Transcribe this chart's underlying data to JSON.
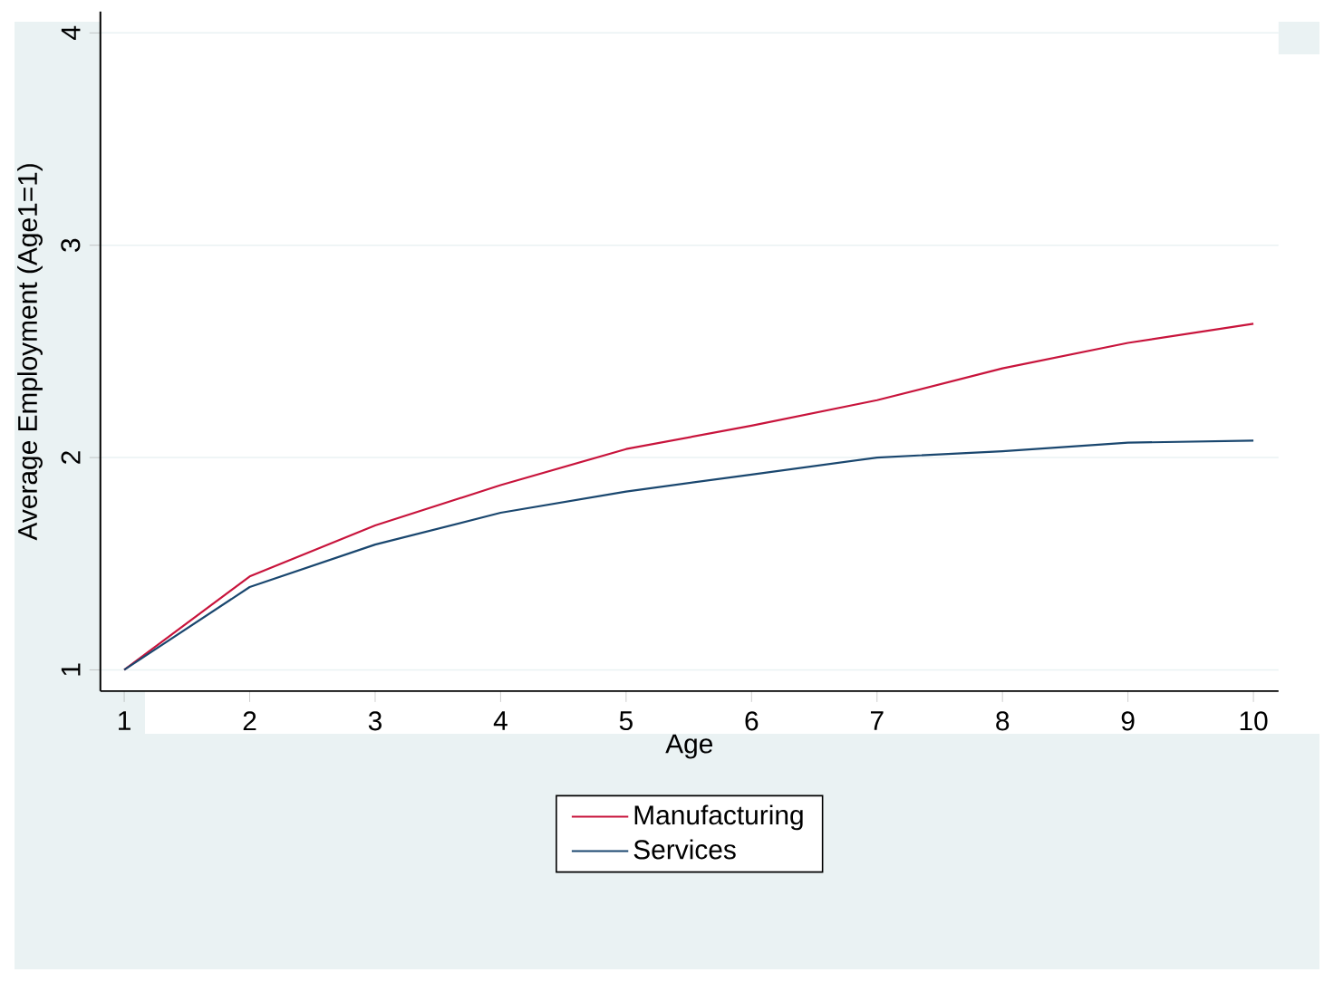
{
  "chart_data": {
    "type": "line",
    "xlabel": "Age",
    "ylabel": "Average Employment (Age1=1)",
    "x": [
      1,
      2,
      3,
      4,
      5,
      6,
      7,
      8,
      9,
      10
    ],
    "series": [
      {
        "name": "Manufacturing",
        "color": "#c8143c",
        "values": [
          1.0,
          1.44,
          1.68,
          1.87,
          2.04,
          2.15,
          2.27,
          2.42,
          2.54,
          2.63
        ]
      },
      {
        "name": "Services",
        "color": "#1a476f",
        "values": [
          1.0,
          1.39,
          1.59,
          1.74,
          1.84,
          1.92,
          2.0,
          2.03,
          2.07,
          2.08
        ]
      }
    ],
    "xlim": [
      0.81,
      10.2
    ],
    "ylim": [
      0.9,
      4.1
    ],
    "xticks": [
      1,
      2,
      3,
      4,
      5,
      6,
      7,
      8,
      9,
      10
    ],
    "yticks": [
      1,
      2,
      3,
      4
    ],
    "grid": "y",
    "legend": "bottom",
    "marker": "none",
    "line_style": "solid"
  }
}
